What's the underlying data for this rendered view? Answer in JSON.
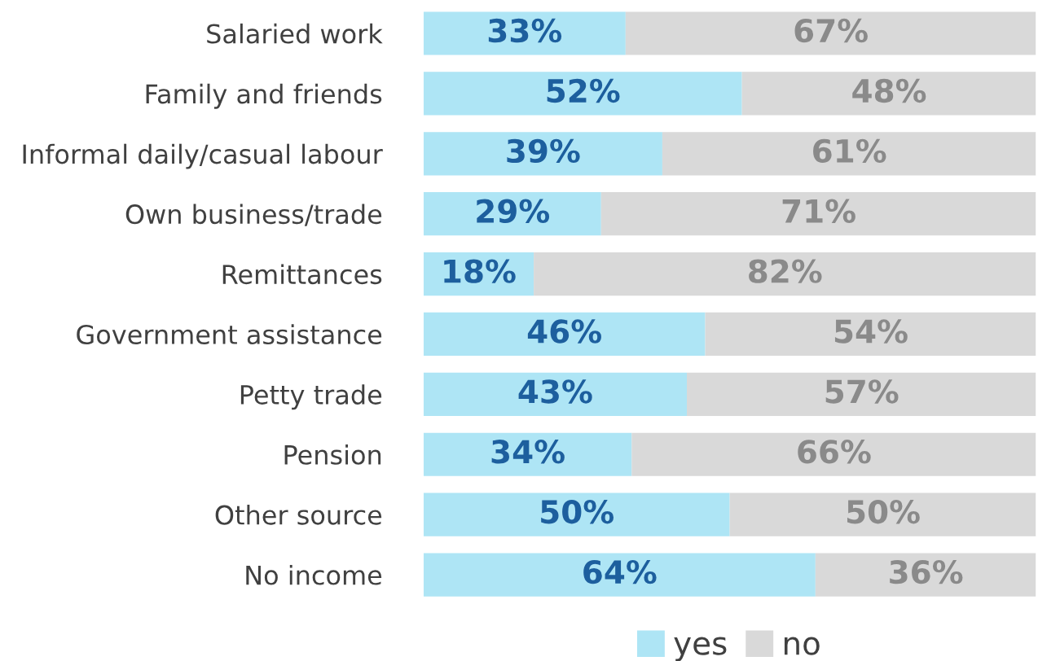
{
  "chart_data": {
    "type": "bar",
    "orientation": "horizontal",
    "stacked": true,
    "categories": [
      "Salaried work",
      "Family and friends",
      "Informal daily/casual labour",
      "Own business/trade",
      "Remittances",
      "Government assistance",
      "Petty trade",
      "Pension",
      "Other source",
      "No income"
    ],
    "series": [
      {
        "name": "yes",
        "color": "#aee5f5",
        "values": [
          33,
          52,
          39,
          29,
          18,
          46,
          43,
          34,
          50,
          64
        ],
        "value_labels": [
          "33%",
          "52%",
          "39%",
          "29%",
          "18%",
          "46%",
          "43%",
          "34%",
          "50%",
          "64%"
        ]
      },
      {
        "name": "no",
        "color": "#d9d9d9",
        "values": [
          67,
          48,
          61,
          71,
          82,
          54,
          57,
          66,
          50,
          36
        ],
        "value_labels": [
          "67%",
          "48%",
          "61%",
          "71%",
          "82%",
          "54%",
          "57%",
          "66%",
          "50%",
          "36%"
        ]
      }
    ],
    "xlim": [
      0,
      100
    ],
    "tick_labels": "y",
    "grid": false,
    "legend": "bottom"
  }
}
